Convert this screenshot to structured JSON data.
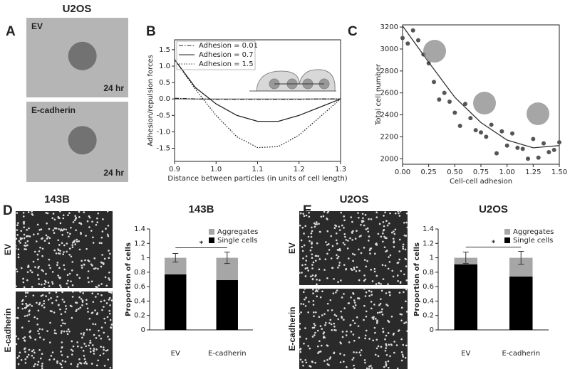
{
  "figure": {
    "panel_labels": [
      "A",
      "B",
      "C",
      "D",
      "E"
    ],
    "a_title": "U2OS",
    "a_images": [
      {
        "label": "EV",
        "time": "24 hr"
      },
      {
        "label": "E-cadherin",
        "time": "24 hr"
      }
    ],
    "d_title": "143B",
    "d_images": [
      "EV",
      "E-cadherin"
    ],
    "e_title": "U2OS",
    "e_images": [
      "EV",
      "E-cadherin"
    ]
  },
  "chart_data": [
    {
      "type": "line",
      "xlabel": "Distance between particles (in units of cell length)",
      "ylabel": "Adhesion/repulsion forces",
      "x": [
        0.9,
        0.95,
        1.0,
        1.05,
        1.1,
        1.15,
        1.2,
        1.25,
        1.3
      ],
      "series": [
        {
          "name": "Adhesion = 0.01",
          "color": "#222222",
          "style": "dashdot",
          "values": [
            0.02,
            0,
            -0.01,
            -0.01,
            -0.01,
            -0.01,
            -0.01,
            0,
            0
          ]
        },
        {
          "name": "Adhesion = 0.7",
          "color": "#222222",
          "style": "solid",
          "values": [
            1.2,
            0.35,
            -0.15,
            -0.5,
            -0.68,
            -0.68,
            -0.5,
            -0.25,
            0
          ]
        },
        {
          "name": "Adhesion = 1.5",
          "color": "#222222",
          "style": "dotted",
          "values": [
            1.2,
            0.3,
            -0.5,
            -1.15,
            -1.48,
            -1.45,
            -1.1,
            -0.55,
            0
          ]
        }
      ],
      "xlim": [
        0.9,
        1.3
      ],
      "xticks": [
        0.9,
        {
          "value": 1,
          "label": "1.0"
        },
        1.1,
        1.2,
        1.3
      ],
      "ylim": [
        -1.9,
        1.8
      ],
      "yticks": [
        -1.5,
        {
          "value": -1,
          "label": "-1.0"
        },
        -0.5,
        {
          "value": 0,
          "label": "0.0"
        },
        0.5,
        {
          "value": 1,
          "label": "1.0"
        },
        1.5
      ],
      "legend": "upper left",
      "zero_line": true
    },
    {
      "type": "scatter",
      "xlabel": "Cell-cell adhesion",
      "ylabel": "Total cell number",
      "color": "#555555",
      "x": [
        0,
        0.05,
        0.1,
        0.15,
        0.2,
        0.25,
        0.3,
        0.35,
        0.4,
        0.45,
        0.5,
        0.55,
        0.6,
        0.65,
        0.7,
        0.75,
        0.8,
        0.85,
        0.9,
        0.95,
        1.0,
        1.05,
        1.1,
        1.15,
        1.2,
        1.25,
        1.3,
        1.35,
        1.4,
        1.45,
        1.5
      ],
      "values": [
        3100,
        3050,
        3170,
        3080,
        2950,
        2870,
        2700,
        2540,
        2600,
        2520,
        2420,
        2300,
        2500,
        2370,
        2260,
        2240,
        2200,
        2310,
        2050,
        2250,
        2120,
        2230,
        2100,
        2090,
        2000,
        2180,
        2010,
        2140,
        2060,
        2080,
        2150
      ],
      "fit": {
        "x": [
          0,
          0.25,
          0.5,
          0.75,
          1.0,
          1.25,
          1.5
        ],
        "values": [
          3210,
          2880,
          2560,
          2330,
          2170,
          2100,
          2120
        ]
      },
      "xlim": [
        0,
        1.5
      ],
      "xticks": [
        {
          "value": 0,
          "label": "0.00"
        },
        0.25,
        {
          "value": 0.5,
          "label": "0.50"
        },
        0.75,
        {
          "value": 1,
          "label": "1.00"
        },
        1.25,
        {
          "value": 1.5,
          "label": "1.50"
        }
      ],
      "ylim": [
        1950,
        3220
      ],
      "yticks": [
        2000,
        2200,
        2400,
        2600,
        2800,
        3000,
        3200
      ]
    },
    {
      "type": "bar",
      "stacked": true,
      "title": "143B",
      "ylabel": "Proportion of cells",
      "categories": [
        "EV",
        "E-cadherin"
      ],
      "series": [
        {
          "name": "Single cells",
          "color": "#000000",
          "values": [
            0.77,
            0.69
          ]
        },
        {
          "name": "Aggregates",
          "color": "#a6a6a6",
          "values": [
            0.23,
            0.31
          ],
          "errors": [
            0.06,
            0.08
          ]
        }
      ],
      "ylim": [
        0,
        1.4
      ],
      "yticks": [
        0,
        0.2,
        0.4,
        0.6,
        0.8,
        1,
        1.2,
        1.4
      ],
      "legend": "upper right",
      "significance": "*"
    },
    {
      "type": "bar",
      "stacked": true,
      "title": "U2OS",
      "ylabel": "Proportion of cells",
      "categories": [
        "EV",
        "E-cadherin"
      ],
      "series": [
        {
          "name": "Single cells",
          "color": "#000000",
          "values": [
            0.91,
            0.74
          ]
        },
        {
          "name": "Aggregates",
          "color": "#a6a6a6",
          "values": [
            0.09,
            0.26
          ],
          "errors": [
            0.08,
            0.09
          ]
        }
      ],
      "ylim": [
        0,
        1.4
      ],
      "yticks": [
        0,
        0.2,
        0.4,
        0.6,
        0.8,
        1,
        1.2,
        1.4
      ],
      "legend": "upper right",
      "significance": "*"
    }
  ]
}
